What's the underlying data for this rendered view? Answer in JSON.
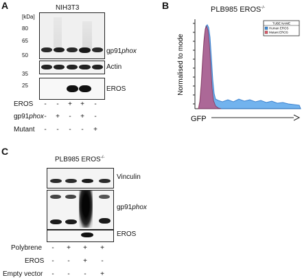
{
  "panelA": {
    "letter": "A",
    "title": "NIH3T3",
    "kda_label": "[kDa]",
    "mw_markers": [
      "80",
      "65",
      "50",
      "35",
      "25"
    ],
    "blot_labels": {
      "gp91_prefix": "gp91",
      "gp91_italic": "phox",
      "actin": "Actin",
      "eros": "EROS"
    },
    "rows": [
      {
        "label": "EROS",
        "signs": [
          "-",
          "-",
          "+",
          "+",
          "-"
        ]
      },
      {
        "label_prefix": "gp91",
        "label_italic": "phox",
        "signs": [
          "-",
          "+",
          "-",
          "+",
          "-"
        ]
      },
      {
        "label": "Mutant",
        "signs": [
          "-",
          "-",
          "-",
          "-",
          "+"
        ]
      }
    ]
  },
  "panelB": {
    "letter": "B",
    "title": "PLB985 EROS",
    "title_sup": "-/-",
    "ylabel": "Normalised to mode",
    "xlabel": "GFP",
    "legend_header": "TUBE NAME",
    "legend_items": [
      {
        "name": "Human EROS",
        "color": "#3c8fe0"
      },
      {
        "name": "Mutant EROS",
        "color": "#e05a6a"
      }
    ]
  },
  "panelC": {
    "letter": "C",
    "title": "PLB985 EROS",
    "title_sup": "-/-",
    "blot_labels": {
      "vinculin": "Vinculin",
      "gp91_prefix": "gp91",
      "gp91_italic": "phox",
      "eros": "EROS"
    },
    "rows": [
      {
        "label": "Polybrene",
        "signs": [
          "-",
          "+",
          "+",
          "+"
        ]
      },
      {
        "label": "EROS",
        "signs": [
          "-",
          "-",
          "+",
          "-"
        ]
      },
      {
        "label": "Empty vector",
        "signs": [
          "-",
          "-",
          "-",
          "+"
        ]
      }
    ]
  }
}
